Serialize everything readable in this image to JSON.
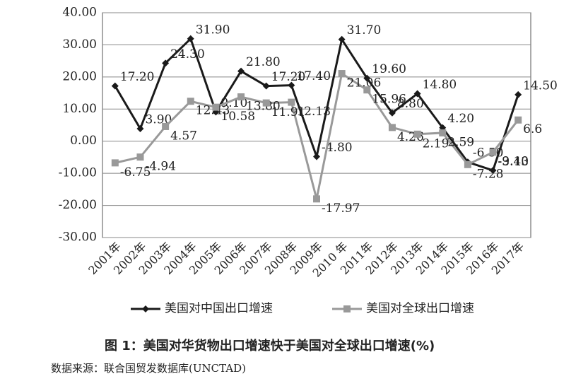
{
  "chart_data": {
    "type": "line",
    "categories": [
      "2001年",
      "2002年",
      "2003年",
      "2004年",
      "2005年",
      "2006年",
      "2007年",
      "2008年",
      "2009年",
      "2010 年",
      "2011年",
      "2012年",
      "2013年",
      "2014年",
      "2015年",
      "2016年",
      "2017年"
    ],
    "series": [
      {
        "name": "美国对中国出口增速",
        "color": "#1a1a1a",
        "marker": "diamond",
        "values": [
          17.2,
          3.9,
          24.3,
          31.9,
          9.1,
          21.8,
          17.2,
          17.4,
          -4.8,
          31.7,
          19.6,
          8.8,
          14.8,
          4.2,
          -6.5,
          -9.1,
          14.5
        ],
        "value_labels": [
          "17.20",
          "3.90",
          "24.30",
          "31.90",
          "9.10",
          "21.80",
          "17.20",
          "17.40",
          "-4.80",
          "31.70",
          "19.60",
          "8.80",
          "14.80",
          "4.20",
          "-6.50",
          "-9.10",
          "14.50"
        ]
      },
      {
        "name": "美国对全球出口增速",
        "color": "#999999",
        "marker": "square",
        "values": [
          -6.75,
          -4.94,
          4.57,
          12.43,
          10.58,
          13.8,
          11.91,
          12.13,
          -17.97,
          21.06,
          15.96,
          4.26,
          2.19,
          2.59,
          -7.28,
          -3.43,
          6.6
        ],
        "value_labels": [
          "-6.75",
          "-4.94",
          "4.57",
          "12.43",
          "10.58",
          "13.80",
          "11.91",
          "12.13",
          "-17.97",
          "21.06",
          "15.96",
          "4.26",
          "2.19",
          "2.59",
          "-7.28",
          "-3.43",
          "6.6"
        ]
      }
    ],
    "ylim": [
      -30,
      40
    ],
    "yticks": [
      {
        "value": -30,
        "label": "-30.00"
      },
      {
        "value": -20,
        "label": "-20.00"
      },
      {
        "value": -10,
        "label": "-10.00"
      },
      {
        "value": 0,
        "label": "0.00"
      },
      {
        "value": 10,
        "label": "10.00"
      },
      {
        "value": 20,
        "label": "20.00"
      },
      {
        "value": 30,
        "label": "30.00"
      },
      {
        "value": 40,
        "label": "40.00"
      }
    ],
    "grid": true,
    "caption": "图 1：美国对华货物出口增速快于美国对全球出口增速(%)",
    "source": "数据来源：联合国贸发数据库(UNCTAD)"
  }
}
